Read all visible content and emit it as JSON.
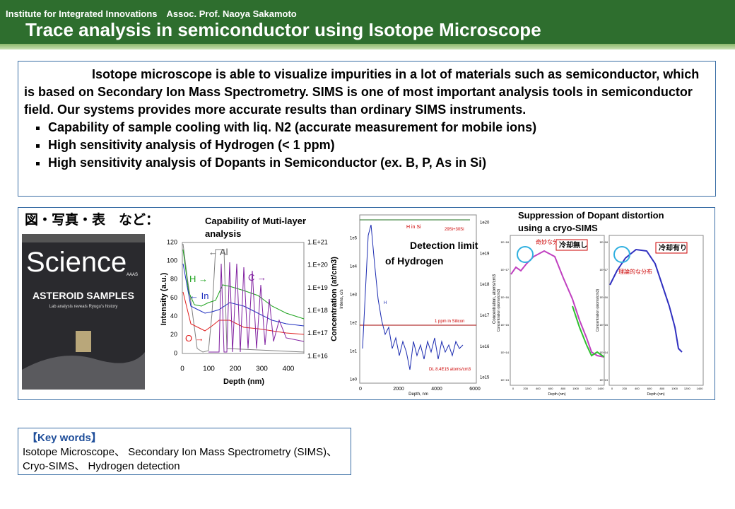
{
  "header": {
    "affiliation": "Institute for Integrated Innovations　Assoc. Prof. Naoya Sakamoto",
    "title": "Trace analysis in semiconductor using Isotope Microscope"
  },
  "summary": {
    "paragraph": "Isotope microscope is able to visualize impurities in a lot of materials such as semiconductor, which is based on Secondary Ion Mass Spectrometry.   SIMS is one of most important analysis tools in semiconductor field.  Our systems provides more accurate results than ordinary SIMS instruments.",
    "bullets": [
      "Capability of sample cooling with liq. N2 (accurate measurement for mobile ions)",
      "High sensitivity analysis of Hydrogen (< 1 ppm)",
      "High sensitivity analysis of Dopants in Semiconductor (ex. B, P, As in Si)"
    ]
  },
  "figures": {
    "heading": "図・写真・表　など：",
    "cover": {
      "masthead": "Science",
      "headline": "ASTEROID SAMPLES",
      "subline": "Lab analysis reveals Ryugu's history",
      "publisher": "AAAS"
    },
    "multilayer": {
      "caption": [
        "Capability of Muti-layer",
        "analysis"
      ],
      "ylabel": "Intensity (a.u.)",
      "y2label": "Concentration (at/cm3)",
      "xlabel": "Depth (nm)",
      "yticks": [
        "120",
        "100",
        "80",
        "60",
        "40",
        "20",
        "0"
      ],
      "y2ticks": [
        "1.E+21",
        "1.E+20",
        "1.E+19",
        "1.E+18",
        "1.E+17",
        "1.E+16"
      ],
      "xticks": [
        "0",
        "100",
        "200",
        "300",
        "400"
      ],
      "labels": [
        "← Al",
        "H →",
        "← In",
        "C →",
        "O →"
      ]
    },
    "hydrogen": {
      "caption": [
        "Detection limit",
        "of Hydrogen"
      ],
      "yticks": [
        "1e5",
        "1e4",
        "1e3",
        "1e2",
        "1e1",
        "1e0"
      ],
      "y2ticks": [
        "1e20",
        "1e19",
        "1e18",
        "1e17",
        "1e16",
        "1e15"
      ],
      "xticks": [
        "0",
        "2000",
        "4000",
        "6000"
      ],
      "xlabel": "Depth, nm",
      "ylabel": "Intens, c/s",
      "y2label": "Concentration, atoms/cm3",
      "labels": [
        "H in Si",
        "29Si+30Si",
        "1 ppm in Silicon",
        "DL 8.4E15 atoms/cm3",
        "H"
      ]
    },
    "cryo": {
      "caption": [
        "Suppression of Dopant distortion",
        "using a cryo-SIMS"
      ],
      "yticks": [
        "1E+18",
        "1E+17",
        "1E+16",
        "1E+15",
        "1E+14",
        "1E+13"
      ],
      "xticks": [
        "0",
        "200",
        "400",
        "600",
        "800",
        "1000",
        "1200",
        "1400"
      ],
      "xlabel": "Depth (nm)",
      "ylabel": "Concentration (atoms/cm3)",
      "labels": [
        "奇妙な分布",
        "冷却無し",
        "理論的な分布",
        "冷却有り"
      ]
    }
  },
  "keywords": {
    "heading": "【Key words】",
    "text": "Isotope Microscope、 Secondary Ion Mass Spectrometry (SIMS)、Cryo-SIMS、 Hydrogen detection"
  }
}
